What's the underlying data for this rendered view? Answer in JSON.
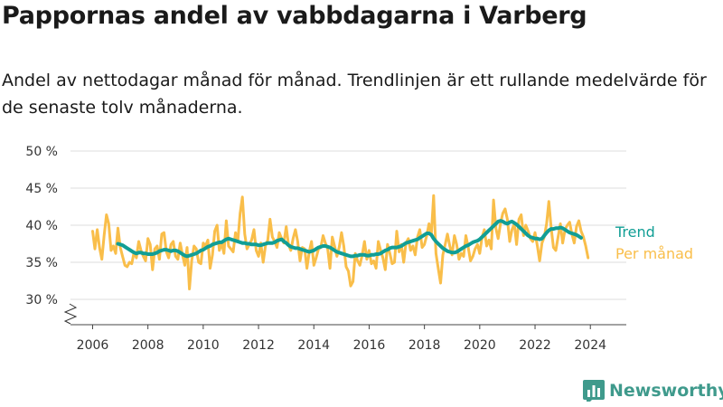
{
  "header": {
    "title": "Pappornas andel av vabbdagarna i Varberg",
    "subtitle": "Andel av nettodagar månad för månad. Trendlinjen är ett rullande medelvärde för de senaste tolv månaderna."
  },
  "brand": {
    "name": "Newsworthy",
    "icon": "newsworthy-logo-icon",
    "color": "#3f9a8c"
  },
  "chart_data": {
    "type": "line",
    "x_type": "date-monthly",
    "ylim": [
      30,
      50
    ],
    "y_ticks": [
      30,
      35,
      40,
      45,
      50
    ],
    "y_tick_labels": [
      "30 %",
      "35 %",
      "40 %",
      "45 %",
      "50 %"
    ],
    "x_ticks": [
      2006,
      2008,
      2010,
      2012,
      2014,
      2016,
      2018,
      2020,
      2022,
      2024
    ],
    "x_tick_labels": [
      "2006",
      "2008",
      "2010",
      "2012",
      "2014",
      "2016",
      "2018",
      "2020",
      "2022",
      "2024"
    ],
    "xlim": [
      2005.2,
      2025.3
    ],
    "grid": true,
    "y_axis_break": true,
    "legend": "right-inline",
    "series": [
      {
        "name": "Per månad",
        "color": "#f9be4a",
        "start": "2006-01",
        "values": [
          39.2,
          36.8,
          39.4,
          37.0,
          35.4,
          38.6,
          41.4,
          40.2,
          36.6,
          37.2,
          36.2,
          39.6,
          37.0,
          35.8,
          34.6,
          34.4,
          35.0,
          34.8,
          36.4,
          35.6,
          37.8,
          36.6,
          35.8,
          35.2,
          38.2,
          37.4,
          34.0,
          36.8,
          37.2,
          35.4,
          38.8,
          39.0,
          36.4,
          35.6,
          37.4,
          37.8,
          35.8,
          35.4,
          37.6,
          36.0,
          34.6,
          37.0,
          31.4,
          35.2,
          37.2,
          36.8,
          35.0,
          34.8,
          37.6,
          37.2,
          38.0,
          34.2,
          36.0,
          39.2,
          40.0,
          36.6,
          37.6,
          36.2,
          40.6,
          37.2,
          36.8,
          36.4,
          39.0,
          37.8,
          41.6,
          43.8,
          38.8,
          36.8,
          37.4,
          38.0,
          39.4,
          36.6,
          35.8,
          37.6,
          35.0,
          37.2,
          38.0,
          40.8,
          38.4,
          37.8,
          37.0,
          39.0,
          38.2,
          37.6,
          39.8,
          37.4,
          36.6,
          38.2,
          39.4,
          37.8,
          35.2,
          37.0,
          36.8,
          34.2,
          36.4,
          37.8,
          34.6,
          35.6,
          36.8,
          37.0,
          38.6,
          37.6,
          36.8,
          34.2,
          38.4,
          37.2,
          35.8,
          37.0,
          39.0,
          37.2,
          34.4,
          33.8,
          31.8,
          32.4,
          36.2,
          35.2,
          34.6,
          36.0,
          37.8,
          35.4,
          36.6,
          34.8,
          35.2,
          34.2,
          37.8,
          36.6,
          35.6,
          34.0,
          37.4,
          36.2,
          34.8,
          35.0,
          39.2,
          36.4,
          37.4,
          35.0,
          37.6,
          38.2,
          36.6,
          37.2,
          36.0,
          38.4,
          39.4,
          37.0,
          37.4,
          38.6,
          40.2,
          38.8,
          44.0,
          36.2,
          34.2,
          32.2,
          36.0,
          37.4,
          38.8,
          37.2,
          36.0,
          38.6,
          37.4,
          35.4,
          36.2,
          35.8,
          38.6,
          37.0,
          35.2,
          35.8,
          36.8,
          37.4,
          36.2,
          38.4,
          39.4,
          37.2,
          38.0,
          36.8,
          43.4,
          39.6,
          38.2,
          40.2,
          41.6,
          42.2,
          40.8,
          37.8,
          39.4,
          40.2,
          37.4,
          40.8,
          41.4,
          38.6,
          40.0,
          39.2,
          38.2,
          37.8,
          39.0,
          37.2,
          35.2,
          37.6,
          38.4,
          40.2,
          43.2,
          39.6,
          37.0,
          36.6,
          38.4,
          40.2,
          37.6,
          39.4,
          40.0,
          40.4,
          38.8,
          37.6,
          39.8,
          40.6,
          39.2,
          38.4,
          37.2,
          35.6
        ]
      },
      {
        "name": "Trend",
        "color": "#119e95",
        "start": "2006-12",
        "values": [
          37.5,
          37.4,
          37.3,
          37.1,
          36.9,
          36.7,
          36.5,
          36.3,
          36.2,
          36.3,
          36.3,
          36.2,
          36.2,
          36.1,
          36.1,
          36.1,
          36.2,
          36.3,
          36.5,
          36.6,
          36.7,
          36.7,
          36.6,
          36.5,
          36.6,
          36.6,
          36.5,
          36.3,
          36.1,
          35.9,
          35.8,
          35.9,
          36.0,
          36.1,
          36.2,
          36.4,
          36.6,
          36.7,
          36.9,
          37.1,
          37.2,
          37.4,
          37.5,
          37.6,
          37.7,
          37.7,
          37.9,
          38.1,
          38.2,
          38.1,
          38.0,
          37.9,
          37.8,
          37.7,
          37.6,
          37.6,
          37.5,
          37.5,
          37.4,
          37.4,
          37.4,
          37.3,
          37.3,
          37.4,
          37.5,
          37.6,
          37.6,
          37.6,
          37.7,
          37.9,
          38.0,
          38.1,
          37.8,
          37.6,
          37.3,
          37.1,
          37.0,
          36.9,
          36.9,
          36.8,
          36.7,
          36.6,
          36.5,
          36.4,
          36.5,
          36.6,
          36.8,
          37.0,
          37.1,
          37.2,
          37.2,
          37.1,
          37.0,
          36.8,
          36.6,
          36.4,
          36.3,
          36.2,
          36.1,
          36.0,
          35.9,
          35.8,
          35.8,
          35.9,
          35.9,
          36.0,
          36.0,
          36.0,
          35.9,
          35.9,
          36.0,
          36.0,
          36.1,
          36.1,
          36.2,
          36.4,
          36.6,
          36.7,
          36.9,
          37.0,
          37.0,
          37.0,
          37.1,
          37.2,
          37.4,
          37.6,
          37.7,
          37.8,
          37.9,
          38.0,
          38.1,
          38.3,
          38.5,
          38.7,
          38.9,
          38.9,
          38.7,
          38.2,
          37.8,
          37.5,
          37.2,
          36.9,
          36.7,
          36.5,
          36.4,
          36.3,
          36.3,
          36.4,
          36.6,
          36.8,
          37.0,
          37.2,
          37.3,
          37.5,
          37.7,
          37.8,
          37.9,
          38.1,
          38.4,
          38.7,
          39.0,
          39.3,
          39.6,
          39.9,
          40.2,
          40.5,
          40.6,
          40.5,
          40.3,
          40.2,
          40.4,
          40.5,
          40.3,
          40.1,
          39.8,
          39.5,
          39.2,
          38.9,
          38.6,
          38.4,
          38.3,
          38.2,
          38.2,
          38.1,
          38.2,
          38.6,
          39.0,
          39.3,
          39.5,
          39.5,
          39.6,
          39.6,
          39.7,
          39.6,
          39.4,
          39.2,
          39.0,
          38.9,
          38.8,
          38.7,
          38.5,
          38.3
        ]
      }
    ]
  }
}
